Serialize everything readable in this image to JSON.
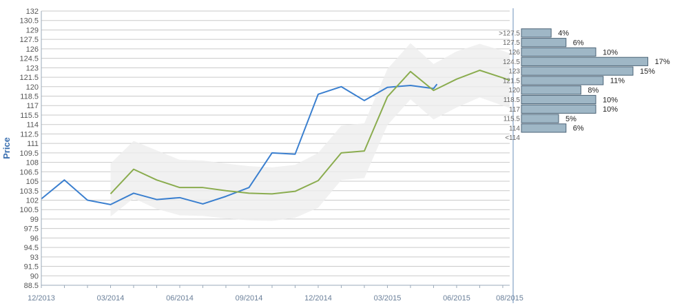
{
  "chart_data": {
    "type": "line",
    "ylabel": "Price",
    "xlabel": "",
    "ylim": [
      88.5,
      132
    ],
    "y_ticks": [
      88.5,
      90,
      91.5,
      93,
      94.5,
      96,
      97.5,
      99,
      100.5,
      102,
      103.5,
      105,
      106.5,
      108,
      109.5,
      111,
      112.5,
      114,
      115.5,
      117,
      118.5,
      120,
      121.5,
      123,
      124.5,
      126,
      127.5,
      129,
      130.5,
      132
    ],
    "x_tick_labels": [
      "12/2013",
      "03/2014",
      "06/2014",
      "09/2014",
      "12/2014",
      "03/2015",
      "06/2015",
      "08/2015"
    ],
    "x_index_range": [
      0,
      20.3
    ],
    "x_label_indices": [
      0,
      3,
      6,
      9,
      12,
      15,
      18,
      20.3
    ],
    "grid": true,
    "series": [
      {
        "role": "price",
        "color": "#3a7fcf",
        "points": [
          [
            0,
            102.2
          ],
          [
            1,
            105.2
          ],
          [
            2,
            102.0
          ],
          [
            3,
            101.3
          ],
          [
            4,
            103.1
          ],
          [
            5,
            102.1
          ],
          [
            6,
            102.4
          ],
          [
            7,
            101.4
          ],
          [
            8,
            102.6
          ],
          [
            9,
            104.0
          ],
          [
            10,
            109.5
          ],
          [
            11,
            109.3
          ],
          [
            12,
            118.8
          ],
          [
            13,
            120.0
          ],
          [
            14,
            117.8
          ],
          [
            15,
            119.9
          ],
          [
            16,
            120.2
          ],
          [
            17,
            119.7
          ],
          [
            17.15,
            120.4
          ]
        ]
      },
      {
        "role": "forecast",
        "color": "#8aac4e",
        "points": [
          [
            3,
            103.0
          ],
          [
            4,
            106.9
          ],
          [
            5,
            105.2
          ],
          [
            6,
            104.0
          ],
          [
            7,
            104.0
          ],
          [
            8,
            103.5
          ],
          [
            9,
            103.1
          ],
          [
            10,
            103.0
          ],
          [
            11,
            103.4
          ],
          [
            12,
            105.1
          ],
          [
            13,
            109.5
          ],
          [
            14,
            109.8
          ],
          [
            15,
            118.4
          ],
          [
            16,
            122.4
          ],
          [
            17,
            119.4
          ],
          [
            18,
            121.2
          ],
          [
            19,
            122.6
          ],
          [
            20,
            121.4
          ],
          [
            20.3,
            121.0
          ]
        ]
      }
    ],
    "band": {
      "upper": [
        [
          3,
          107.8
        ],
        [
          4,
          111.4
        ],
        [
          5,
          109.9
        ],
        [
          6,
          108.4
        ],
        [
          7,
          108.3
        ],
        [
          8,
          107.8
        ],
        [
          9,
          107.4
        ],
        [
          10,
          107.2
        ],
        [
          11,
          107.6
        ],
        [
          12,
          109.5
        ],
        [
          13,
          113.8
        ],
        [
          14,
          114.2
        ],
        [
          15,
          122.8
        ],
        [
          16,
          126.9
        ],
        [
          17,
          123.6
        ],
        [
          18,
          125.6
        ],
        [
          19,
          126.8
        ],
        [
          20,
          125.7
        ],
        [
          20.3,
          125.3
        ]
      ],
      "lower": [
        [
          3,
          99.4
        ],
        [
          4,
          102.3
        ],
        [
          5,
          100.6
        ],
        [
          6,
          99.6
        ],
        [
          7,
          99.5
        ],
        [
          8,
          99.1
        ],
        [
          9,
          98.8
        ],
        [
          10,
          98.7
        ],
        [
          11,
          99.2
        ],
        [
          12,
          100.8
        ],
        [
          13,
          105.2
        ],
        [
          14,
          105.5
        ],
        [
          15,
          113.9
        ],
        [
          16,
          118.0
        ],
        [
          17,
          114.8
        ],
        [
          18,
          116.7
        ],
        [
          19,
          118.3
        ],
        [
          20,
          117.0
        ],
        [
          20.3,
          116.6
        ]
      ]
    },
    "histogram": {
      "bins": [
        {
          "label": ">127.5",
          "value": 4,
          "pct": "4%"
        },
        {
          "label": "127.5",
          "value": 6,
          "pct": "6%"
        },
        {
          "label": "126",
          "value": 10,
          "pct": "10%"
        },
        {
          "label": "124.5",
          "value": 17,
          "pct": "17%"
        },
        {
          "label": "123",
          "value": 15,
          "pct": "15%"
        },
        {
          "label": "121.5",
          "value": 11,
          "pct": "11%"
        },
        {
          "label": "120",
          "value": 8,
          "pct": "8%"
        },
        {
          "label": "118.5",
          "value": 10,
          "pct": "10%"
        },
        {
          "label": "117",
          "value": 10,
          "pct": "10%"
        },
        {
          "label": "115.5",
          "value": 5,
          "pct": "5%"
        },
        {
          "label": "114",
          "value": 6,
          "pct": "6%"
        },
        {
          "label": "<114",
          "value": 0,
          "pct": ""
        }
      ],
      "bar_color": "#9fb7c6"
    }
  }
}
